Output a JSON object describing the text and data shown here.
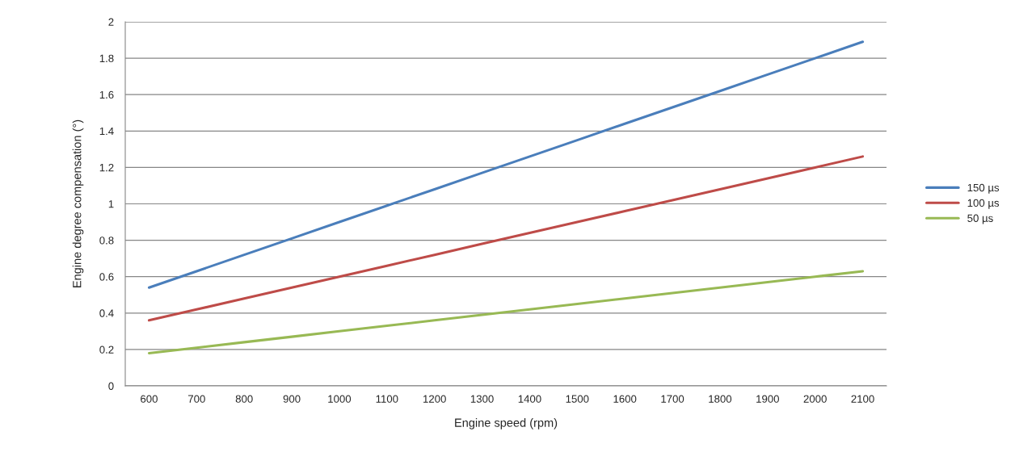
{
  "chart_data": {
    "type": "line",
    "xlabel": "Engine speed (rpm)",
    "ylabel": "Engine degree compensation (°)",
    "categories": [
      "600",
      "700",
      "800",
      "900",
      "1000",
      "1100",
      "1200",
      "1300",
      "1400",
      "1500",
      "1600",
      "1700",
      "1800",
      "1900",
      "2000",
      "2100"
    ],
    "series": [
      {
        "name": "150 µs",
        "color": "#4a7ebb",
        "values": [
          0.54,
          0.63,
          0.72,
          0.81,
          0.9,
          0.99,
          1.08,
          1.17,
          1.26,
          1.35,
          1.44,
          1.53,
          1.62,
          1.71,
          1.8,
          1.89
        ]
      },
      {
        "name": "100 µs",
        "color": "#be4b48",
        "values": [
          0.36,
          0.42,
          0.48,
          0.54,
          0.6,
          0.66,
          0.72,
          0.78,
          0.84,
          0.9,
          0.96,
          1.02,
          1.08,
          1.14,
          1.2,
          1.26
        ]
      },
      {
        "name": "50 µs",
        "color": "#98b954",
        "values": [
          0.18,
          0.21,
          0.24,
          0.27,
          0.3,
          0.33,
          0.36,
          0.39,
          0.42,
          0.45,
          0.48,
          0.51,
          0.54,
          0.57,
          0.6,
          0.63
        ]
      }
    ],
    "ylim": [
      0,
      2
    ],
    "yticks": [
      0,
      0.2,
      0.4,
      0.6,
      0.8,
      1,
      1.2,
      1.4,
      1.6,
      1.8,
      2
    ],
    "grid": "y",
    "legend": "right",
    "marker": "none",
    "line_style": "solid"
  }
}
